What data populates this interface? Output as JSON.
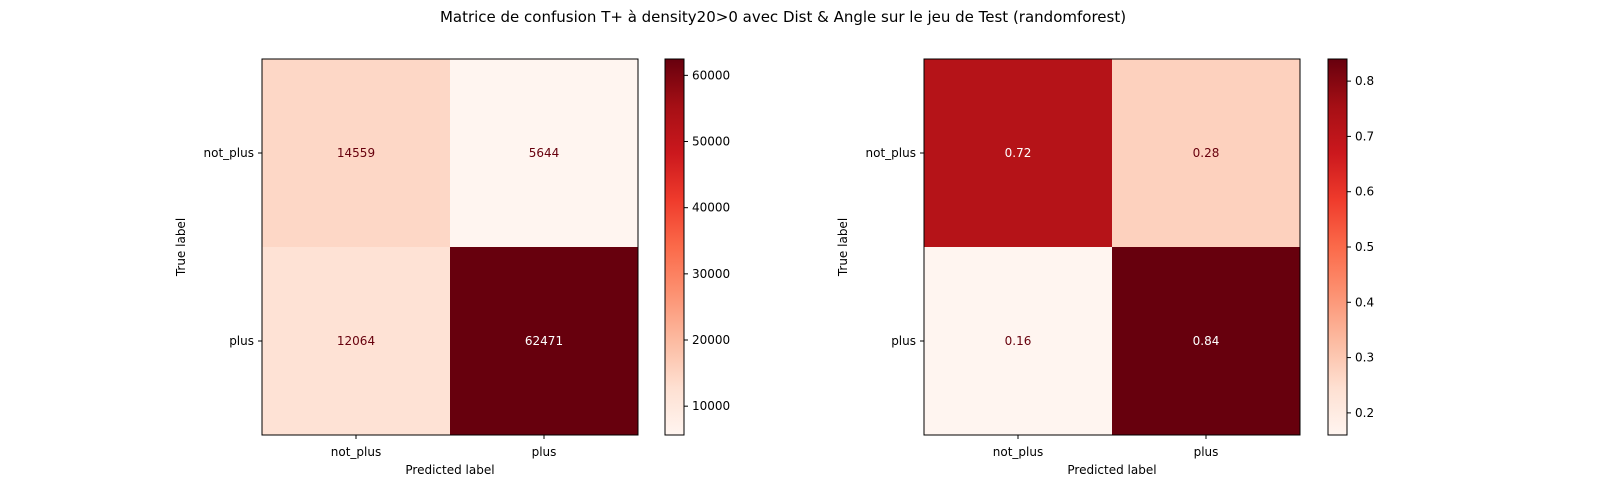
{
  "title": "Matrice de confusion T+ à density20>0 avec Dist & Angle sur le jeu de Test (randomforest)",
  "chart_data": [
    {
      "type": "heatmap",
      "title": "",
      "xlabel": "Predicted label",
      "ylabel": "True label",
      "x_categories": [
        "not_plus",
        "plus"
      ],
      "y_categories": [
        "not_plus",
        "plus"
      ],
      "values": [
        [
          14559,
          5644
        ],
        [
          12064,
          62471
        ]
      ],
      "value_labels": [
        [
          "14559",
          "5644"
        ],
        [
          "12064",
          "62471"
        ]
      ],
      "colormap": "Reds",
      "colorbar": {
        "min": 5644,
        "max": 62471,
        "ticks": [
          10000,
          20000,
          30000,
          40000,
          50000,
          60000
        ],
        "tick_labels": [
          "10000",
          "20000",
          "30000",
          "40000",
          "50000",
          "60000"
        ]
      },
      "grid": false
    },
    {
      "type": "heatmap",
      "title": "",
      "xlabel": "Predicted label",
      "ylabel": "True label",
      "x_categories": [
        "not_plus",
        "plus"
      ],
      "y_categories": [
        "not_plus",
        "plus"
      ],
      "values": [
        [
          0.72,
          0.28
        ],
        [
          0.16,
          0.84
        ]
      ],
      "value_labels": [
        [
          "0.72",
          "0.28"
        ],
        [
          "0.16",
          "0.84"
        ]
      ],
      "colormap": "Reds",
      "colorbar": {
        "min": 0.16,
        "max": 0.84,
        "ticks": [
          0.2,
          0.3,
          0.4,
          0.5,
          0.6,
          0.7,
          0.8
        ],
        "tick_labels": [
          "0.2",
          "0.3",
          "0.4",
          "0.5",
          "0.6",
          "0.7",
          "0.8"
        ]
      },
      "grid": false
    }
  ]
}
